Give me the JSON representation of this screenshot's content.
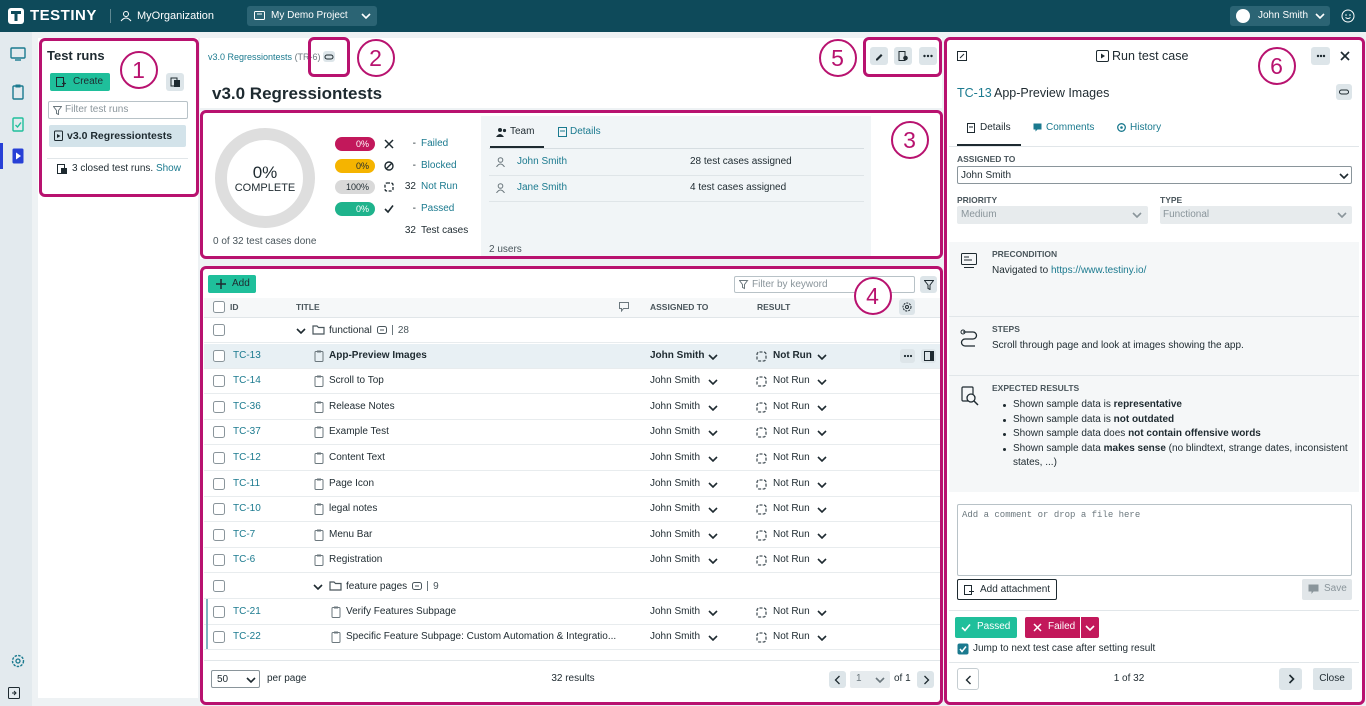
{
  "topbar": {
    "logo": "TESTINY",
    "organization": "MyOrganization",
    "project": "My Demo Project",
    "user": "John Smith"
  },
  "annotations": [
    "1",
    "2",
    "3",
    "4",
    "5",
    "6"
  ],
  "sidebar": {
    "title": "Test runs",
    "create": "Create",
    "filter_placeholder": "Filter test runs",
    "runs": [
      "v3.0 Regressiontests"
    ],
    "closed": "3 closed test runs.",
    "show": "Show"
  },
  "run": {
    "breadcrumb": "v3.0 Regressiontests",
    "breadcrumb_id": "(TR-6)",
    "title": "v3.0 Regressiontests"
  },
  "summary": {
    "percent": "0%",
    "complete": "COMPLETE",
    "done": "0 of 32 test cases done",
    "statuses": [
      {
        "percent": "0%",
        "count": "-",
        "label": "Failed",
        "color": "#c2185b",
        "text_color": "#ffffff"
      },
      {
        "percent": "0%",
        "count": "-",
        "label": "Blocked",
        "color": "#f5b400",
        "text_color": "#1e2a30"
      },
      {
        "percent": "100%",
        "count": "32",
        "label": "Not Run",
        "color": "#d9d9d9",
        "text_color": "#1e2a30"
      },
      {
        "percent": "0%",
        "count": "-",
        "label": "Passed",
        "color": "#1fb38c",
        "text_color": "#ffffff"
      }
    ],
    "total_count": "32",
    "total_label": "Test cases"
  },
  "team": {
    "tabs": [
      "Team",
      "Details"
    ],
    "members": [
      {
        "name": "John Smith",
        "assigned": "28 test cases assigned"
      },
      {
        "name": "Jane Smith",
        "assigned": "4 test cases assigned"
      }
    ],
    "footer": "2 users"
  },
  "table": {
    "add": "Add",
    "filter_placeholder": "Filter by keyword",
    "headers": {
      "id": "ID",
      "title": "TITLE",
      "assigned": "ASSIGNED TO",
      "result": "RESULT"
    },
    "groups": [
      {
        "name": "functional",
        "count": "28",
        "cases": [
          {
            "id": "TC-13",
            "title": "App-Preview Images",
            "assigned": "John Smith",
            "result": "Not Run"
          },
          {
            "id": "TC-14",
            "title": "Scroll to Top",
            "assigned": "John Smith",
            "result": "Not Run"
          },
          {
            "id": "TC-36",
            "title": "Release Notes",
            "assigned": "John Smith",
            "result": "Not Run"
          },
          {
            "id": "TC-37",
            "title": "Example Test",
            "assigned": "John Smith",
            "result": "Not Run"
          },
          {
            "id": "TC-12",
            "title": "Content Text",
            "assigned": "John Smith",
            "result": "Not Run"
          },
          {
            "id": "TC-11",
            "title": "Page Icon",
            "assigned": "John Smith",
            "result": "Not Run"
          },
          {
            "id": "TC-10",
            "title": "legal notes",
            "assigned": "John Smith",
            "result": "Not Run"
          },
          {
            "id": "TC-7",
            "title": "Menu Bar",
            "assigned": "John Smith",
            "result": "Not Run"
          },
          {
            "id": "TC-6",
            "title": "Registration",
            "assigned": "John Smith",
            "result": "Not Run"
          }
        ]
      },
      {
        "name": "feature pages",
        "count": "9",
        "cases": [
          {
            "id": "TC-21",
            "title": "Verify Features Subpage",
            "assigned": "John Smith",
            "result": "Not Run"
          },
          {
            "id": "TC-22",
            "title": "Specific Feature Subpage: Custom Automation & Integratio...",
            "assigned": "John Smith",
            "result": "Not Run"
          }
        ]
      }
    ],
    "footer": {
      "page_size": "50",
      "per_page": "per page",
      "results": "32 results",
      "page": "1",
      "of": "of 1"
    }
  },
  "detail": {
    "title": "Run test case",
    "case_id": "TC-13",
    "case_title": "App-Preview Images",
    "tabs": [
      "Details",
      "Comments",
      "History"
    ],
    "assigned_label": "ASSIGNED TO",
    "assigned": "John Smith",
    "priority_label": "PRIORITY",
    "priority": "Medium",
    "type_label": "TYPE",
    "type": "Functional",
    "precondition_label": "PRECONDITION",
    "precondition_text": "Navigated to",
    "precondition_link": "https://www.testiny.io/",
    "steps_label": "STEPS",
    "steps": "Scroll through page and look at images showing the app.",
    "expected_label": "EXPECTED RESULTS",
    "expected": [
      [
        {
          "text": "Shown sample data is "
        },
        {
          "text": "representative",
          "bold": true
        }
      ],
      [
        {
          "text": "Shown sample data is "
        },
        {
          "text": "not outdated",
          "bold": true
        }
      ],
      [
        {
          "text": "Shown sample data does "
        },
        {
          "text": "not contain offensive words",
          "bold": true
        }
      ],
      [
        {
          "text": "Shown sample data "
        },
        {
          "text": "makes sense",
          "bold": true
        },
        {
          "text": " (no blindtext, strange dates, inconsistent states, ...)"
        }
      ]
    ],
    "comment_placeholder": "Add a comment or drop a file here",
    "attach": "Add attachment",
    "save": "Save",
    "passed": "Passed",
    "failed": "Failed",
    "jump": "Jump to next test case after setting result",
    "position": "1 of 32",
    "close": "Close"
  }
}
